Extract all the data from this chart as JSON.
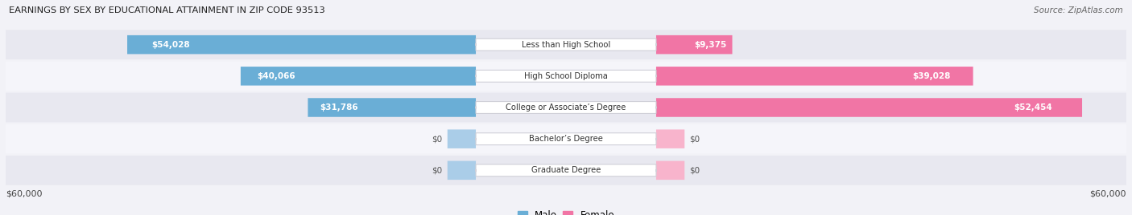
{
  "title": "EARNINGS BY SEX BY EDUCATIONAL ATTAINMENT IN ZIP CODE 93513",
  "source": "Source: ZipAtlas.com",
  "categories": [
    "Less than High School",
    "High School Diploma",
    "College or Associate’s Degree",
    "Bachelor’s Degree",
    "Graduate Degree"
  ],
  "male_values": [
    54028,
    40066,
    31786,
    0,
    0
  ],
  "female_values": [
    9375,
    39028,
    52454,
    0,
    0
  ],
  "male_color": "#6aaed6",
  "female_color": "#f175a5",
  "male_color_light": "#aacde8",
  "female_color_light": "#f8b4cc",
  "max_value": 60000,
  "axis_label": "$60,000",
  "bg_color": "#f2f2f7",
  "row_colors": [
    "#e8e8f0",
    "#f5f5fa"
  ],
  "zero_stub": 3500
}
